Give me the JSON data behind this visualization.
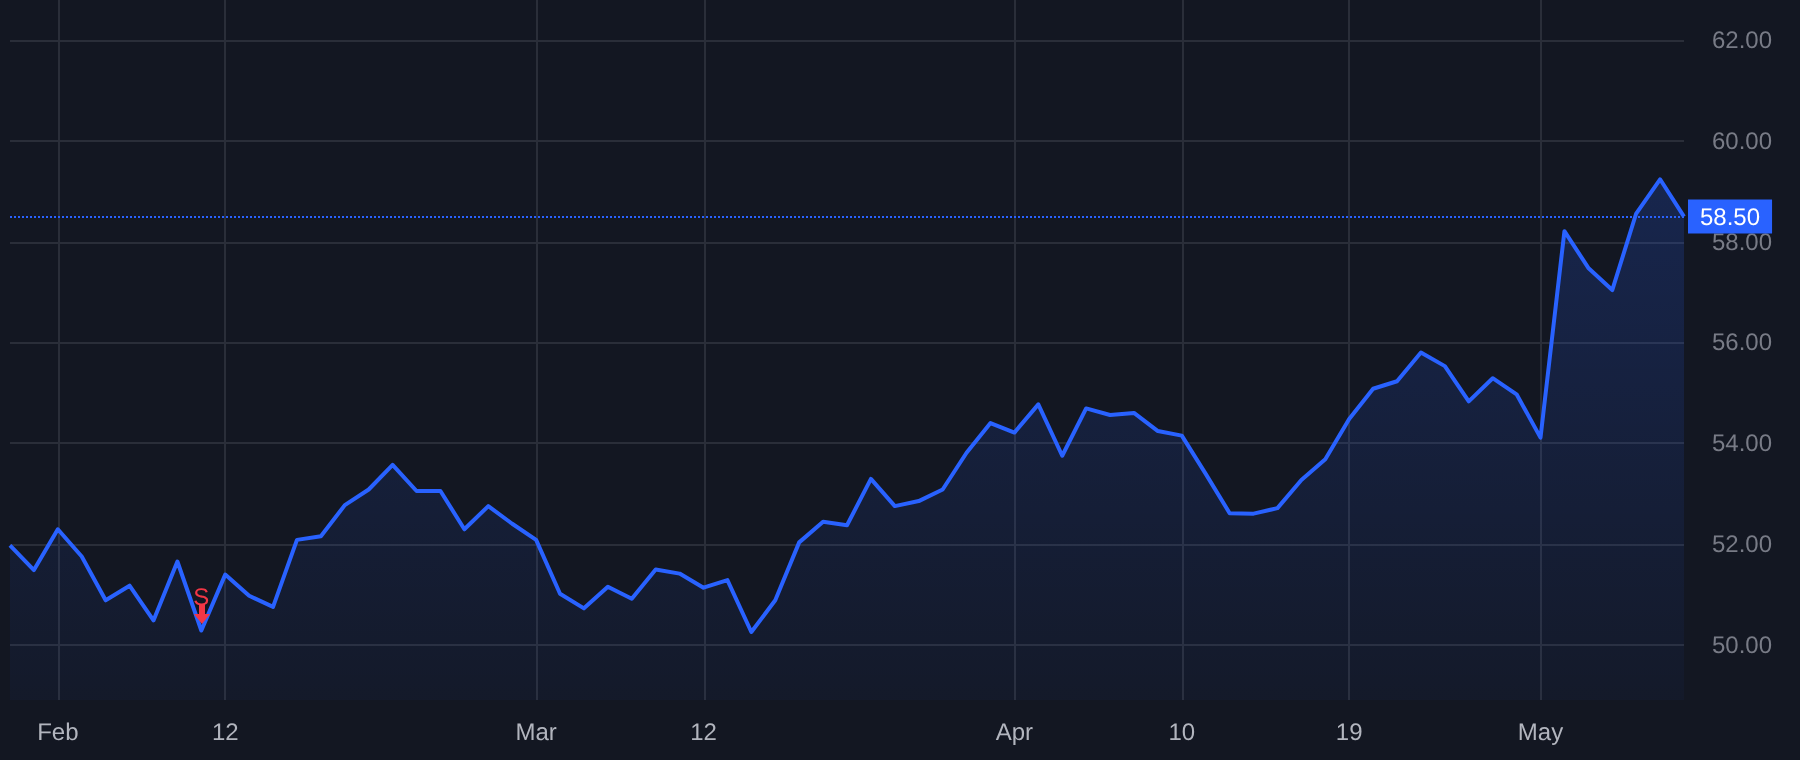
{
  "chart_data": {
    "type": "area",
    "categories": [
      null,
      null,
      "Feb",
      null,
      null,
      null,
      null,
      null,
      null,
      "12",
      null,
      null,
      null,
      null,
      null,
      null,
      null,
      null,
      null,
      null,
      null,
      null,
      "Mar",
      null,
      null,
      null,
      null,
      null,
      null,
      "12",
      null,
      null,
      null,
      null,
      null,
      null,
      null,
      null,
      null,
      null,
      null,
      null,
      "Apr",
      null,
      null,
      null,
      null,
      null,
      null,
      "10",
      null,
      null,
      null,
      null,
      null,
      null,
      "19",
      null,
      null,
      null,
      null,
      null,
      null,
      null,
      "May",
      null,
      null,
      null,
      null,
      null,
      null
    ],
    "series": [
      {
        "color": "#2962ff",
        "values": [
          51.97,
          51.48,
          52.29,
          51.75,
          50.88,
          51.17,
          50.48,
          51.65,
          50.28,
          51.39,
          50.97,
          50.75,
          52.08,
          52.15,
          52.77,
          53.08,
          53.57,
          53.05,
          53.05,
          52.29,
          52.75,
          52.4,
          52.08,
          51.01,
          50.72,
          51.15,
          50.91,
          51.49,
          51.41,
          51.13,
          51.28,
          50.25,
          50.88,
          52.03,
          52.44,
          52.37,
          53.29,
          52.75,
          52.85,
          53.08,
          53.81,
          54.4,
          54.21,
          54.77,
          53.75,
          54.69,
          54.56,
          54.6,
          54.24,
          54.15,
          53.39,
          52.61,
          52.6,
          52.71,
          53.27,
          53.68,
          54.48,
          55.08,
          55.23,
          55.8,
          55.53,
          54.83,
          55.29,
          54.97,
          54.11,
          58.21,
          57.48,
          57.04,
          58.56,
          59.24,
          58.5
        ]
      }
    ],
    "ylim": [
      48.9,
      62.8
    ],
    "yticks": [
      {
        "value": 50,
        "label": "50.00"
      },
      {
        "value": 52,
        "label": "52.00"
      },
      {
        "value": 54,
        "label": "54.00"
      },
      {
        "value": 56,
        "label": "56.00"
      },
      {
        "value": 58,
        "label": "58.00"
      },
      {
        "value": 60,
        "label": "60.00"
      },
      {
        "value": 62,
        "label": "62.00"
      }
    ],
    "grid": true,
    "marker": "none",
    "line_style": "solid",
    "ref_lines": [
      {
        "axis": "y",
        "value": 58.5,
        "label": "58.50",
        "color": "#2962ff",
        "line_style": "dotted"
      }
    ],
    "annotations": [
      {
        "text": "S",
        "y": 50.28
      }
    ]
  }
}
